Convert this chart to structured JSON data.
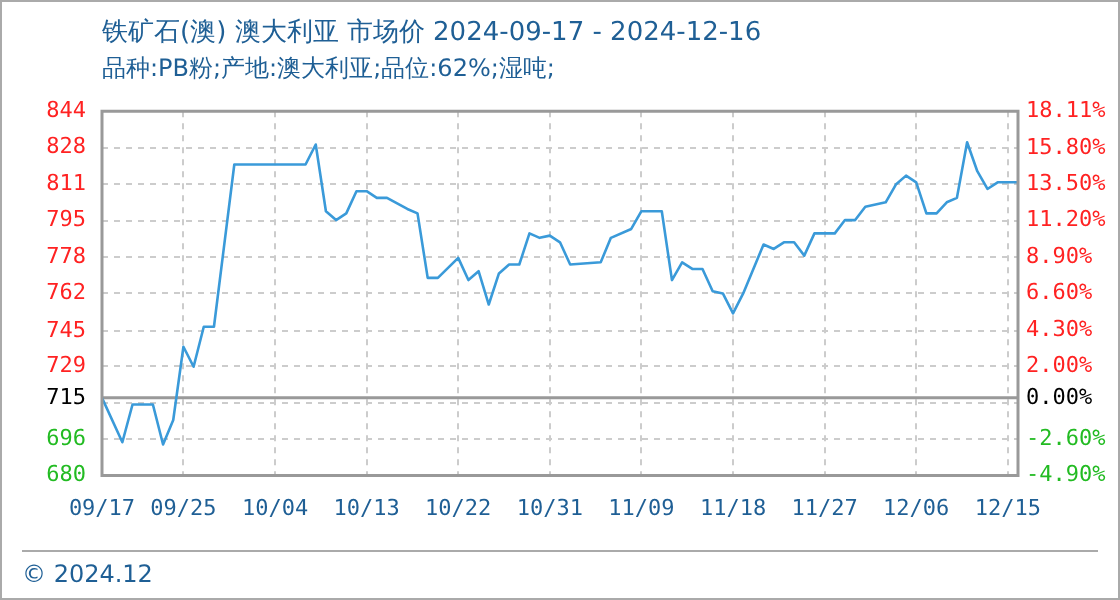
{
  "chart_data": {
    "type": "line",
    "title": "铁矿石(澳) 澳大利亚 市场价 2024-09-17 - 2024-12-16",
    "subtitle": "品种:PB粉;产地:澳大利亚;品位:62%;湿吨;",
    "x": [
      "2024-09-17",
      "2024-09-19",
      "2024-09-20",
      "2024-09-22",
      "2024-09-23",
      "2024-09-24",
      "2024-09-25",
      "2024-09-26",
      "2024-09-27",
      "2024-09-28",
      "2024-09-30",
      "2024-10-07",
      "2024-10-08",
      "2024-10-09",
      "2024-10-10",
      "2024-10-11",
      "2024-10-12",
      "2024-10-13",
      "2024-10-14",
      "2024-10-15",
      "2024-10-17",
      "2024-10-18",
      "2024-10-19",
      "2024-10-20",
      "2024-10-22",
      "2024-10-23",
      "2024-10-24",
      "2024-10-25",
      "2024-10-26",
      "2024-10-27",
      "2024-10-28",
      "2024-10-29",
      "2024-10-30",
      "2024-10-31",
      "2024-11-01",
      "2024-11-02",
      "2024-11-05",
      "2024-11-06",
      "2024-11-08",
      "2024-11-09",
      "2024-11-11",
      "2024-11-12",
      "2024-11-13",
      "2024-11-14",
      "2024-11-15",
      "2024-11-16",
      "2024-11-17",
      "2024-11-18",
      "2024-11-19",
      "2024-11-21",
      "2024-11-22",
      "2024-11-23",
      "2024-11-24",
      "2024-11-25",
      "2024-11-26",
      "2024-11-28",
      "2024-11-29",
      "2024-11-30",
      "2024-12-01",
      "2024-12-03",
      "2024-12-04",
      "2024-12-05",
      "2024-12-06",
      "2024-12-07",
      "2024-12-08",
      "2024-12-09",
      "2024-12-10",
      "2024-12-11",
      "2024-12-12",
      "2024-12-13",
      "2024-12-14",
      "2024-12-16"
    ],
    "series": [
      {
        "color": "#3a9ad9",
        "values": [
          715,
          695,
          712,
          712,
          694,
          705,
          738,
          729,
          747,
          747,
          820,
          820,
          829,
          799,
          795,
          798,
          808,
          808,
          805,
          805,
          800,
          798,
          769,
          769,
          778,
          768,
          772,
          757,
          771,
          775,
          775,
          789,
          787,
          788,
          785,
          775,
          776,
          787,
          791,
          799,
          799,
          768,
          776,
          773,
          773,
          763,
          762,
          753,
          762,
          784,
          782,
          785,
          785,
          779,
          789,
          789,
          795,
          795,
          801,
          803,
          811,
          815,
          812,
          798,
          798,
          803,
          805,
          830,
          817,
          809,
          812,
          812
        ]
      }
    ],
    "xlim": [
      "2024-09-17",
      "2024-12-16"
    ],
    "xticks": [
      {
        "value": "2024-09-17",
        "label": "09/17"
      },
      {
        "value": "2024-09-25",
        "label": "09/25"
      },
      {
        "value": "2024-10-04",
        "label": "10/04"
      },
      {
        "value": "2024-10-13",
        "label": "10/13"
      },
      {
        "value": "2024-10-22",
        "label": "10/22"
      },
      {
        "value": "2024-10-31",
        "label": "10/31"
      },
      {
        "value": "2024-11-09",
        "label": "11/09"
      },
      {
        "value": "2024-11-18",
        "label": "11/18"
      },
      {
        "value": "2024-11-27",
        "label": "11/27"
      },
      {
        "value": "2024-12-06",
        "label": "12/06"
      },
      {
        "value": "2024-12-15",
        "label": "12/15"
      }
    ],
    "ylim": [
      680,
      844
    ],
    "yticks": [
      680,
      {
        "value": 696.4,
        "label": "696"
      },
      {
        "value": 712.8,
        "label": null
      },
      {
        "value": 715,
        "label": "715"
      },
      {
        "value": 729.2,
        "label": "729"
      },
      745,
      762,
      {
        "value": 778.4,
        "label": "778"
      },
      {
        "value": 794.8,
        "label": "795"
      },
      {
        "value": 811.2,
        "label": "811"
      },
      {
        "value": 827.6,
        "label": "828"
      },
      844
    ],
    "y2lim": [
      -4.9,
      18.11
    ],
    "y2ticks": [
      {
        "value": -4.9,
        "label": "-4.90%"
      },
      {
        "value": -2.6,
        "label": "-2.60%"
      },
      {
        "value": 0,
        "label": "0.00%"
      },
      {
        "value": 2,
        "label": "2.00%"
      },
      {
        "value": 4.3,
        "label": "4.30%"
      },
      {
        "value": 6.6,
        "label": "6.60%"
      },
      {
        "value": 8.9,
        "label": "8.90%"
      },
      {
        "value": 11.2,
        "label": "11.20%"
      },
      {
        "value": 13.5,
        "label": "13.50%"
      },
      {
        "value": 15.8,
        "label": "15.80%"
      },
      {
        "value": 18.11,
        "label": "18.11%"
      }
    ],
    "ref_lines": [
      {
        "axis": "y",
        "value": 715,
        "color": "#999999"
      }
    ],
    "grid": true,
    "annotations": [
      "© 2024.12"
    ]
  }
}
